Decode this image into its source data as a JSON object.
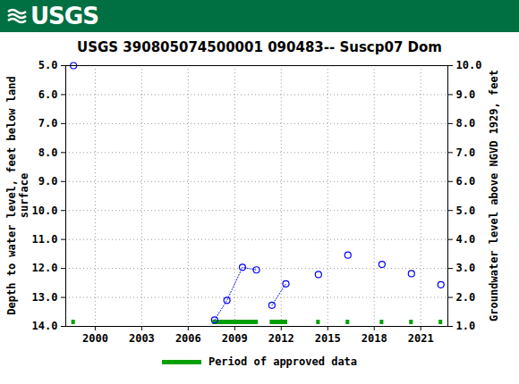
{
  "chart_data": {
    "type": "scatter",
    "header": "USGS",
    "title": "USGS 390805074500001 090483-- Suscp07 Dom",
    "y_label": "Depth to water level, feet below land surface",
    "y2_label": "Groundwater level above NGVD 1929, feet",
    "x": [
      1998.6,
      null,
      2007.7,
      2008.5,
      2009.5,
      2010.4,
      null,
      2011.4,
      2012.3,
      null,
      2014.4,
      null,
      2016.3,
      null,
      2018.5,
      null,
      2020.4,
      null,
      2022.3
    ],
    "series": [
      {
        "color": "#0000ff",
        "marker": "circle",
        "line_style": "dotted",
        "values": [
          5.0,
          null,
          13.78,
          13.1,
          11.96,
          12.05,
          null,
          13.27,
          12.53,
          null,
          12.21,
          null,
          11.54,
          null,
          11.86,
          null,
          12.18,
          null,
          12.56
        ]
      }
    ],
    "approved_periods": {
      "name": "Period of approved data",
      "color": "#00a000",
      "ranges": [
        [
          1998.6,
          1998.6
        ],
        [
          2007.7,
          2010.4
        ],
        [
          2011.4,
          2012.3
        ],
        [
          2014.4,
          2014.4
        ],
        [
          2016.3,
          2016.3
        ],
        [
          2018.5,
          2018.5
        ],
        [
          2020.4,
          2020.4
        ],
        [
          2022.3,
          2022.3
        ]
      ]
    },
    "xlim": [
      1998.1,
      2022.75
    ],
    "xticks": [
      2000,
      2003,
      2006,
      2009,
      2012,
      2015,
      2018,
      2021
    ],
    "ylim": [
      5,
      14
    ],
    "yticks": [
      {
        "value": 5,
        "label": "5.0"
      },
      {
        "value": 6,
        "label": "6.0"
      },
      {
        "value": 7,
        "label": "7.0"
      },
      {
        "value": 8,
        "label": "8.0"
      },
      {
        "value": 9,
        "label": "9.0"
      },
      {
        "value": 10,
        "label": "10.0"
      },
      {
        "value": 11,
        "label": "11.0"
      },
      {
        "value": 12,
        "label": "12.0"
      },
      {
        "value": 13,
        "label": "13.0"
      },
      {
        "value": 14,
        "label": "14.0"
      }
    ],
    "y2lim": [
      10,
      1
    ],
    "y2ticks": [
      {
        "value": 10,
        "label": "10.0"
      },
      {
        "value": 9,
        "label": "9.0"
      },
      {
        "value": 8,
        "label": "8.0"
      },
      {
        "value": 7,
        "label": "7.0"
      },
      {
        "value": 6,
        "label": "6.0"
      },
      {
        "value": 5,
        "label": "5.0"
      },
      {
        "value": 4,
        "label": "4.0"
      },
      {
        "value": 3,
        "label": "3.0"
      },
      {
        "value": 2,
        "label": "2.0"
      },
      {
        "value": 1,
        "label": "1.0"
      }
    ],
    "grid": true
  }
}
